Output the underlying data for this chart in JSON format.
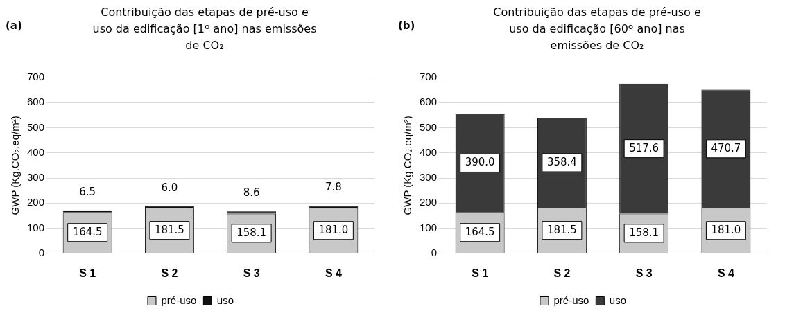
{
  "chart_data": [
    {
      "type": "bar",
      "title": "Contribuição das etapas de pré-uso e uso da edificação [1º ano] nas emissões de CO₂",
      "ylabel": "GWP (Kg.CO₂.eq/m²)",
      "annotations": [
        "(a)"
      ],
      "categories": [
        "S 1",
        "S 2",
        "S 3",
        "S 4"
      ],
      "stacked": true,
      "series": [
        {
          "name": "pré-uso",
          "color": "#c8c8c8",
          "values": [
            164.5,
            181.5,
            158.1,
            181
          ],
          "value_labels": [
            "164.5",
            "181.5",
            "158.1",
            "181.0"
          ]
        },
        {
          "name": "uso",
          "color": "#111111",
          "values": [
            6.5,
            6,
            8.6,
            7.8
          ],
          "value_labels": [
            "6.5",
            "6.0",
            "8.6",
            "7.8"
          ]
        }
      ],
      "ylim": [
        0,
        700
      ],
      "yticks": [
        0,
        100,
        200,
        300,
        400,
        500,
        600,
        700
      ],
      "grid": "y",
      "legend": "bottom"
    },
    {
      "type": "bar",
      "title": "Contribuição das etapas de pré-uso e uso da edificação [60º ano] nas emissões de CO₂",
      "ylabel": "GWP (Kg.CO₂.eq/m²)",
      "annotations": [
        "(b)"
      ],
      "categories": [
        "S 1",
        "S 2",
        "S 3",
        "S 4"
      ],
      "stacked": true,
      "series": [
        {
          "name": "pré-uso",
          "color": "#c8c8c8",
          "values": [
            164.5,
            181.5,
            158.1,
            181
          ],
          "value_labels": [
            "164.5",
            "181.5",
            "158.1",
            "181.0"
          ]
        },
        {
          "name": "uso",
          "color": "#3a3a3a",
          "values": [
            390,
            358.4,
            517.6,
            470.7
          ],
          "value_labels": [
            "390.0",
            "358.4",
            "517.6",
            "470.7"
          ]
        }
      ],
      "ylim": [
        0,
        700
      ],
      "yticks": [
        0,
        100,
        200,
        300,
        400,
        500,
        600,
        700
      ],
      "grid": "y",
      "legend": "bottom"
    }
  ]
}
